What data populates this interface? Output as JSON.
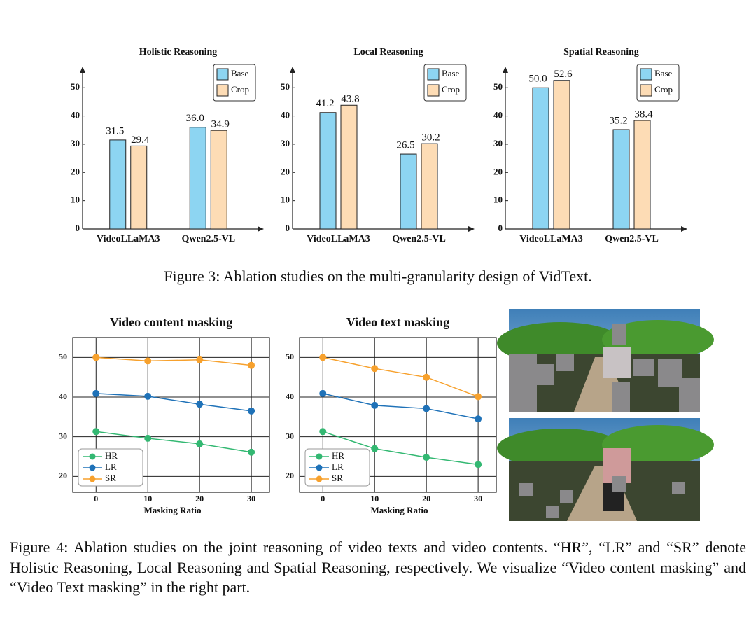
{
  "chart_data": [
    {
      "type": "bar",
      "title": "Holistic Reasoning",
      "categories": [
        "VideoLLaMA3",
        "Qwen2.5-VL"
      ],
      "series": [
        {
          "name": "Base",
          "color": "#8dd5f2",
          "values": [
            31.5,
            36.0
          ],
          "value_labels": [
            "31.5",
            "36.0"
          ]
        },
        {
          "name": "Crop",
          "color": "#fddcb5",
          "values": [
            29.4,
            34.9
          ],
          "value_labels": [
            "29.4",
            "34.9"
          ]
        }
      ],
      "ylim": [
        0,
        57
      ],
      "yticks": [
        0,
        10,
        20,
        30,
        40,
        50
      ],
      "legend": "upper right"
    },
    {
      "type": "bar",
      "title": "Local Reasoning",
      "categories": [
        "VideoLLaMA3",
        "Qwen2.5-VL"
      ],
      "series": [
        {
          "name": "Base",
          "color": "#8dd5f2",
          "values": [
            41.2,
            26.5
          ],
          "value_labels": [
            "41.2",
            "26.5"
          ]
        },
        {
          "name": "Crop",
          "color": "#fddcb5",
          "values": [
            43.8,
            30.2
          ],
          "value_labels": [
            "43.8",
            "30.2"
          ]
        }
      ],
      "ylim": [
        0,
        57
      ],
      "yticks": [
        0,
        10,
        20,
        30,
        40,
        50
      ],
      "legend": "upper right"
    },
    {
      "type": "bar",
      "title": "Spatial Reasoning",
      "categories": [
        "VideoLLaMA3",
        "Qwen2.5-VL"
      ],
      "series": [
        {
          "name": "Base",
          "color": "#8dd5f2",
          "values": [
            50.0,
            35.2
          ],
          "value_labels": [
            "50.0",
            "35.2"
          ]
        },
        {
          "name": "Crop",
          "color": "#fddcb5",
          "values": [
            52.6,
            38.4
          ],
          "value_labels": [
            "52.6",
            "38.4"
          ]
        }
      ],
      "ylim": [
        0,
        57
      ],
      "yticks": [
        0,
        10,
        20,
        30,
        40,
        50
      ],
      "legend": "upper right"
    },
    {
      "type": "line",
      "title": "Video content masking",
      "xlabel": "Masking Ratio",
      "x": [
        0,
        10,
        20,
        30
      ],
      "series": [
        {
          "name": "HR",
          "color": "#33b872",
          "values": [
            31.3,
            29.6,
            28.2,
            26.1
          ]
        },
        {
          "name": "LR",
          "color": "#1f72b8",
          "values": [
            40.9,
            40.2,
            38.2,
            36.5
          ]
        },
        {
          "name": "SR",
          "color": "#f7a12d",
          "values": [
            50.0,
            49.1,
            49.4,
            48.0
          ]
        }
      ],
      "xlim": [
        -4.5,
        33.5
      ],
      "xticks": [
        0,
        10,
        20,
        30
      ],
      "ylim": [
        16,
        55
      ],
      "yticks": [
        20,
        30,
        40,
        50
      ],
      "grid": true,
      "legend": "lower left"
    },
    {
      "type": "line",
      "title": "Video text masking",
      "xlabel": "Masking Ratio",
      "x": [
        0,
        10,
        20,
        30
      ],
      "series": [
        {
          "name": "HR",
          "color": "#33b872",
          "values": [
            31.3,
            27.0,
            24.8,
            23.0
          ]
        },
        {
          "name": "LR",
          "color": "#1f72b8",
          "values": [
            40.9,
            37.9,
            37.1,
            34.5
          ]
        },
        {
          "name": "SR",
          "color": "#f7a12d",
          "values": [
            50.0,
            47.2,
            45.0,
            40.1
          ]
        }
      ],
      "xlim": [
        -4.5,
        33.5
      ],
      "xticks": [
        0,
        10,
        20,
        30
      ],
      "ylim": [
        16,
        55
      ],
      "yticks": [
        20,
        30,
        40,
        50
      ],
      "grid": true,
      "legend": "lower left"
    }
  ],
  "figure3_caption": "Figure 3: Ablation studies on the multi-granularity design of VidText.",
  "figure4_caption": "Figure 4: Ablation studies on the joint reasoning of video texts and video contents. “HR”, “LR” and “SR” denote Holistic Reasoning, Local Reasoning and Spatial Reasoning, respectively. We visualize “Video content masking” and “Video Text masking” in the right part."
}
